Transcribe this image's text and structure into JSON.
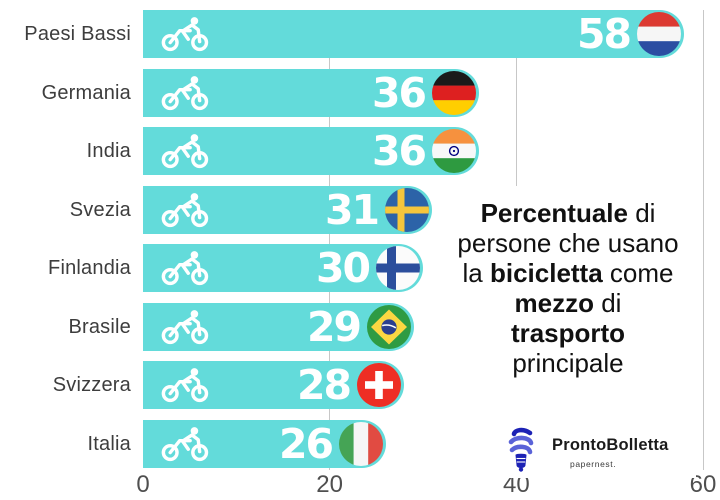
{
  "chart_data": {
    "type": "bar",
    "orientation": "horizontal",
    "title": "Percentuale di persone che usano la bicicletta come mezzo di trasporto principale",
    "categories": [
      "Paesi Bassi",
      "Germania",
      "India",
      "Svezia",
      "Finlandia",
      "Brasile",
      "Svizzera",
      "Italia"
    ],
    "values": [
      58,
      36,
      36,
      31,
      30,
      29,
      28,
      26
    ],
    "flags": [
      "netherlands",
      "germany",
      "india",
      "sweden",
      "finland",
      "brazil",
      "switzerland",
      "italy"
    ],
    "xlim": [
      0,
      60
    ],
    "x_ticks": [
      0,
      20,
      40,
      60
    ],
    "grid": true,
    "legend_position": "none",
    "bar_color": "#63DBDA",
    "value_color": "#FFFFFF",
    "bar_icon": "cyclist-icon"
  },
  "caption": {
    "text_color": "#111111",
    "lines": [
      {
        "segments": [
          {
            "text": "Percentuale",
            "bold": true
          },
          {
            "text": " di",
            "bold": false
          }
        ]
      },
      {
        "segments": [
          {
            "text": "persone che usano",
            "bold": false
          }
        ]
      },
      {
        "segments": [
          {
            "text": "la ",
            "bold": false
          },
          {
            "text": "bicicletta",
            "bold": true
          },
          {
            "text": " come",
            "bold": false
          }
        ]
      },
      {
        "segments": [
          {
            "text": "mezzo",
            "bold": true
          },
          {
            "text": " di",
            "bold": false
          }
        ]
      },
      {
        "segments": [
          {
            "text": "trasporto",
            "bold": true
          }
        ]
      },
      {
        "segments": [
          {
            "text": "principale",
            "bold": false
          }
        ]
      }
    ]
  },
  "logo": {
    "brand": "ProntoBolletta",
    "subtext": "papernest.",
    "icon": "cfl-lightbulb-icon",
    "icon_color": "#5A63D8",
    "icon_dark_color": "#1C22B5"
  },
  "axis": {
    "tick_color": "#4F4F4F",
    "grid_color": "#C7C7C7"
  },
  "labels_color": "#3D3D3D"
}
